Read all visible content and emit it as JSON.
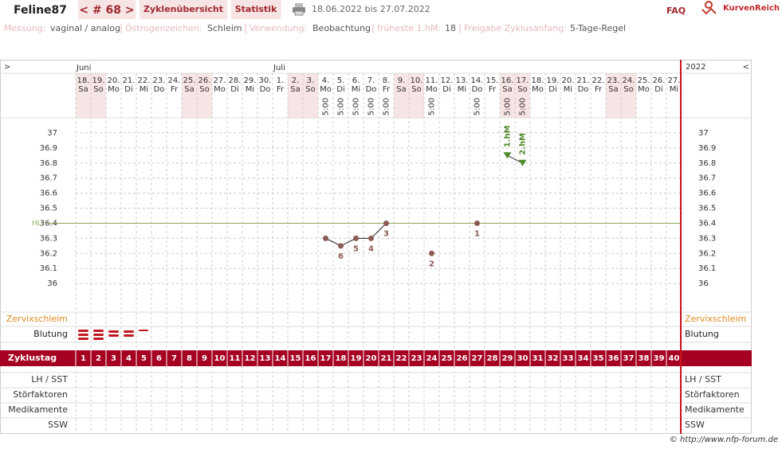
{
  "header": {
    "user": "Feline87",
    "cycle": "< # 68 >",
    "tabs": [
      "Zyklenübersicht",
      "Statistik"
    ],
    "date_range": "18.06.2022 bis 27.07.2022",
    "faq": "FAQ",
    "logo": "KurvenReich"
  },
  "settings": [
    {
      "label": "Messung:",
      "value": "vaginal / analog"
    },
    {
      "label": "Östrogenzeichen:",
      "value": "Schleim"
    },
    {
      "label": "Verwendung:",
      "value": "Beobachtung"
    },
    {
      "label": "früheste 1.hM:",
      "value": "18"
    },
    {
      "label": "Freigabe Zyklusanfang:",
      "value": "5-Tage-Regel"
    }
  ],
  "chart_data": {
    "type": "line",
    "nav_left": ">",
    "nav_right": "<",
    "year": "2022",
    "month_labels": [
      "Juni",
      null,
      null,
      null,
      null,
      null,
      null,
      null,
      null,
      null,
      null,
      null,
      null,
      "Juli",
      null,
      null,
      null,
      null,
      null,
      null,
      null,
      null,
      null,
      null,
      null,
      null,
      null,
      null,
      null,
      null,
      null,
      null,
      null,
      null,
      null,
      null,
      null,
      null,
      null,
      null
    ],
    "days": [
      "18.",
      "19.",
      "20.",
      "21.",
      "22.",
      "23.",
      "24.",
      "25.",
      "26.",
      "27.",
      "28.",
      "29.",
      "30.",
      "1.",
      "2.",
      "3.",
      "4.",
      "5.",
      "6.",
      "7.",
      "8.",
      "9.",
      "10.",
      "11.",
      "12.",
      "13.",
      "14.",
      "15.",
      "16.",
      "17.",
      "18.",
      "19.",
      "20.",
      "21.",
      "22.",
      "23.",
      "24.",
      "25.",
      "26.",
      "27."
    ],
    "weekdays": [
      "Sa",
      "So",
      "Mo",
      "Di",
      "Mi",
      "Do",
      "Fr",
      "Sa",
      "So",
      "Mo",
      "Di",
      "Mi",
      "Do",
      "Fr",
      "Sa",
      "So",
      "Mo",
      "Di",
      "Mi",
      "Do",
      "Fr",
      "Sa",
      "So",
      "Mo",
      "Di",
      "Mi",
      "Do",
      "Fr",
      "Sa",
      "So",
      "Mo",
      "Di",
      "Mi",
      "Do",
      "Fr",
      "Sa",
      "So",
      "Mo",
      "Di",
      "Mi"
    ],
    "times": [
      null,
      null,
      null,
      null,
      null,
      null,
      null,
      null,
      null,
      null,
      null,
      null,
      null,
      null,
      null,
      null,
      "5:00",
      "5:00",
      "5:00",
      "5:00",
      "5:00",
      null,
      null,
      "5:00",
      null,
      null,
      "5:00",
      null,
      "5:00",
      "5:00",
      null,
      null,
      null,
      null,
      null,
      null,
      null,
      null,
      null,
      null
    ],
    "ylim": [
      35.8,
      37.1
    ],
    "yticks": [
      36,
      36.1,
      36.2,
      36.3,
      36.4,
      36.5,
      36.6,
      36.7,
      36.8,
      36.9,
      37
    ],
    "grid": true,
    "reference_line": {
      "label": "HLi",
      "value": 36.4,
      "color": "#8aa860"
    },
    "series": [
      {
        "color": "#8c5a55",
        "marker": "circle",
        "values": [
          null,
          null,
          null,
          null,
          null,
          null,
          null,
          null,
          null,
          null,
          null,
          null,
          null,
          null,
          null,
          null,
          36.3,
          36.25,
          36.3,
          36.3,
          36.4,
          null,
          null,
          36.2,
          null,
          null,
          36.4,
          null,
          null,
          null,
          null,
          null,
          null,
          null,
          null,
          null,
          null,
          null,
          null,
          null
        ],
        "point_labels": [
          null,
          null,
          null,
          null,
          null,
          null,
          null,
          null,
          null,
          null,
          null,
          null,
          null,
          null,
          null,
          null,
          null,
          "6",
          "5",
          "4",
          "3",
          null,
          null,
          "2",
          null,
          null,
          "1",
          null,
          null,
          null,
          null,
          null,
          null,
          null,
          null,
          null,
          null,
          null,
          null,
          null
        ]
      },
      {
        "color": "#4f8a2a",
        "marker": "triangle",
        "values": [
          null,
          null,
          null,
          null,
          null,
          null,
          null,
          null,
          null,
          null,
          null,
          null,
          null,
          null,
          null,
          null,
          null,
          null,
          null,
          null,
          null,
          null,
          null,
          null,
          null,
          null,
          null,
          null,
          36.85,
          36.8,
          null,
          null,
          null,
          null,
          null,
          null,
          null,
          null,
          null,
          null
        ],
        "point_labels": [
          null,
          null,
          null,
          null,
          null,
          null,
          null,
          null,
          null,
          null,
          null,
          null,
          null,
          null,
          null,
          null,
          null,
          null,
          null,
          null,
          null,
          null,
          null,
          null,
          null,
          null,
          null,
          null,
          "1.hM",
          "2.hM",
          null,
          null,
          null,
          null,
          null,
          null,
          null,
          null,
          null,
          null
        ]
      }
    ],
    "row_labels": [
      "Zervixschleim",
      "Blutung"
    ],
    "cycle_day_label": "Zyklustag",
    "cycle_days": [
      1,
      2,
      3,
      4,
      5,
      6,
      7,
      8,
      9,
      10,
      11,
      12,
      13,
      14,
      15,
      16,
      17,
      18,
      19,
      20,
      21,
      22,
      23,
      24,
      25,
      26,
      27,
      28,
      29,
      30,
      31,
      32,
      33,
      34,
      35,
      36,
      37,
      38,
      39,
      40
    ],
    "lower_rows": [
      "LH / SST",
      "Störfaktoren",
      "Medikamente",
      "SSW"
    ]
  },
  "footer": "© http://www.nfp-forum.de"
}
